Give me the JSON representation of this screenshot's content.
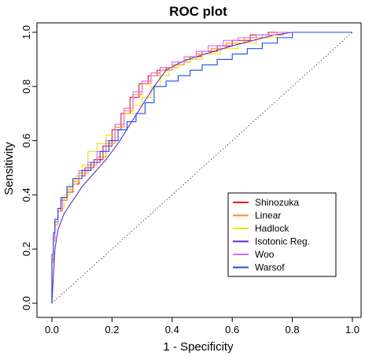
{
  "chart_data": {
    "type": "line",
    "title": "ROC plot",
    "xlabel": "1 - Specificity",
    "ylabel": "Sensitivity",
    "xlim": [
      0,
      1
    ],
    "ylim": [
      0,
      1
    ],
    "xticks": [
      "0.0",
      "0.2",
      "0.4",
      "0.6",
      "0.8",
      "1.0"
    ],
    "yticks": [
      "0.0",
      "0.2",
      "0.4",
      "0.6",
      "0.8",
      "1.0"
    ],
    "legend_position": "bottom-right",
    "reference_line": {
      "style": "dotted",
      "color": "#555555",
      "x": [
        0,
        1
      ],
      "y": [
        0,
        1
      ]
    },
    "series": [
      {
        "name": "Shinozuka",
        "color": "#e41a1c",
        "step": true,
        "x": [
          0.0,
          0.005,
          0.01,
          0.02,
          0.03,
          0.05,
          0.07,
          0.09,
          0.11,
          0.14,
          0.17,
          0.2,
          0.23,
          0.26,
          0.29,
          0.32,
          0.35,
          0.38,
          0.42,
          0.46,
          0.5,
          0.55,
          0.6,
          0.66,
          0.72,
          0.8,
          0.9,
          1.0
        ],
        "y": [
          0.0,
          0.16,
          0.24,
          0.3,
          0.34,
          0.38,
          0.41,
          0.44,
          0.47,
          0.5,
          0.53,
          0.58,
          0.64,
          0.7,
          0.76,
          0.81,
          0.84,
          0.86,
          0.87,
          0.89,
          0.91,
          0.93,
          0.95,
          0.97,
          0.99,
          1.0,
          1.0,
          1.0
        ]
      },
      {
        "name": "Linear",
        "color": "#ff8c1a",
        "step": true,
        "x": [
          0.0,
          0.005,
          0.01,
          0.02,
          0.035,
          0.05,
          0.07,
          0.09,
          0.12,
          0.15,
          0.18,
          0.21,
          0.24,
          0.27,
          0.3,
          0.33,
          0.36,
          0.4,
          0.44,
          0.48,
          0.53,
          0.58,
          0.64,
          0.7,
          0.77,
          0.85,
          1.0
        ],
        "y": [
          0.0,
          0.15,
          0.23,
          0.29,
          0.34,
          0.38,
          0.42,
          0.45,
          0.48,
          0.51,
          0.54,
          0.59,
          0.65,
          0.71,
          0.77,
          0.81,
          0.84,
          0.86,
          0.88,
          0.9,
          0.92,
          0.94,
          0.96,
          0.98,
          0.99,
          1.0,
          1.0
        ]
      },
      {
        "name": "Hadlock",
        "color": "#e6e600",
        "step": true,
        "x": [
          0.0,
          0.005,
          0.01,
          0.02,
          0.04,
          0.06,
          0.08,
          0.1,
          0.12,
          0.15,
          0.18,
          0.21,
          0.24,
          0.27,
          0.3,
          0.33,
          0.36,
          0.39,
          0.42,
          0.46,
          0.5,
          0.56,
          0.62,
          0.68,
          0.75,
          0.83,
          1.0
        ],
        "y": [
          0.0,
          0.17,
          0.25,
          0.3,
          0.35,
          0.4,
          0.44,
          0.47,
          0.51,
          0.56,
          0.59,
          0.62,
          0.66,
          0.7,
          0.73,
          0.76,
          0.8,
          0.84,
          0.87,
          0.89,
          0.9,
          0.92,
          0.94,
          0.96,
          0.98,
          1.0,
          1.0
        ]
      },
      {
        "name": "Isotonic Reg.",
        "color": "#5b2bd6",
        "step": false,
        "x": [
          0.0,
          0.01,
          0.02,
          0.04,
          0.07,
          0.1,
          0.14,
          0.18,
          0.22,
          0.26,
          0.3,
          0.34,
          0.38,
          0.43,
          0.48,
          0.54,
          0.6,
          0.67,
          0.74,
          0.8,
          0.85,
          1.0
        ],
        "y": [
          0.0,
          0.2,
          0.27,
          0.33,
          0.38,
          0.43,
          0.48,
          0.53,
          0.59,
          0.66,
          0.73,
          0.8,
          0.86,
          0.89,
          0.91,
          0.93,
          0.95,
          0.97,
          0.99,
          1.0,
          1.0,
          1.0
        ]
      },
      {
        "name": "Woo",
        "color": "#d966ff",
        "step": true,
        "x": [
          0.0,
          0.005,
          0.01,
          0.02,
          0.035,
          0.05,
          0.07,
          0.09,
          0.12,
          0.15,
          0.18,
          0.21,
          0.24,
          0.27,
          0.3,
          0.33,
          0.36,
          0.4,
          0.44,
          0.48,
          0.52,
          0.57,
          0.62,
          0.68,
          0.75,
          0.82,
          1.0
        ],
        "y": [
          0.0,
          0.16,
          0.24,
          0.3,
          0.35,
          0.39,
          0.43,
          0.46,
          0.49,
          0.52,
          0.56,
          0.6,
          0.66,
          0.72,
          0.78,
          0.82,
          0.85,
          0.87,
          0.89,
          0.91,
          0.93,
          0.95,
          0.97,
          0.98,
          0.99,
          1.0,
          1.0
        ]
      },
      {
        "name": "Warsof",
        "color": "#1a4de6",
        "step": true,
        "x": [
          0.0,
          0.005,
          0.01,
          0.02,
          0.03,
          0.05,
          0.07,
          0.1,
          0.13,
          0.16,
          0.19,
          0.22,
          0.25,
          0.28,
          0.31,
          0.34,
          0.38,
          0.42,
          0.46,
          0.5,
          0.55,
          0.6,
          0.65,
          0.7,
          0.75,
          0.8,
          0.85,
          1.0
        ],
        "y": [
          0.0,
          0.18,
          0.26,
          0.31,
          0.35,
          0.39,
          0.43,
          0.46,
          0.49,
          0.52,
          0.56,
          0.6,
          0.64,
          0.67,
          0.7,
          0.74,
          0.8,
          0.82,
          0.84,
          0.86,
          0.88,
          0.9,
          0.92,
          0.94,
          0.96,
          0.98,
          1.0,
          1.0
        ]
      }
    ]
  }
}
